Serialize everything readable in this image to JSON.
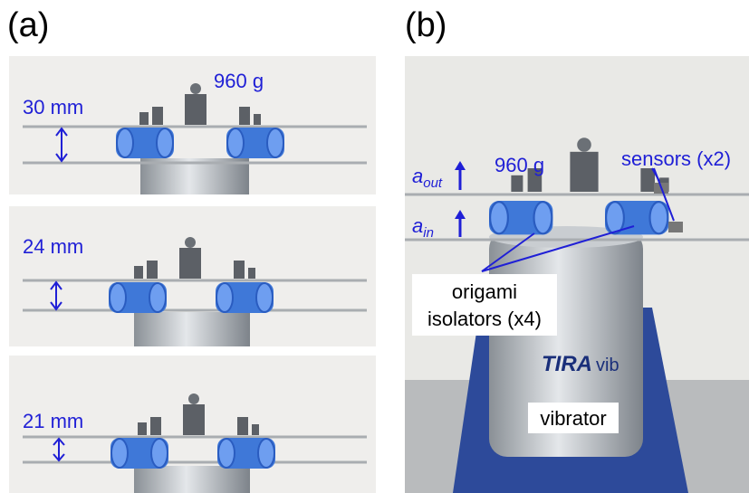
{
  "panels": [
    {
      "label": "(a)",
      "photos": [
        {
          "gap": "30 mm",
          "mass": "960 g"
        },
        {
          "gap": "24 mm"
        },
        {
          "gap": "21 mm"
        }
      ]
    },
    {
      "label": "(b)",
      "mass": "960 g",
      "sensors": "sensors (x2)",
      "a_out": {
        "symbol": "a",
        "subscript": "out"
      },
      "a_in": {
        "symbol": "a",
        "subscript": "in"
      },
      "isolators": [
        "origami",
        "isolators (x4)"
      ],
      "brand": {
        "name": "TIRA",
        "suffix": "vib"
      },
      "vibrator": "vibrator"
    }
  ]
}
